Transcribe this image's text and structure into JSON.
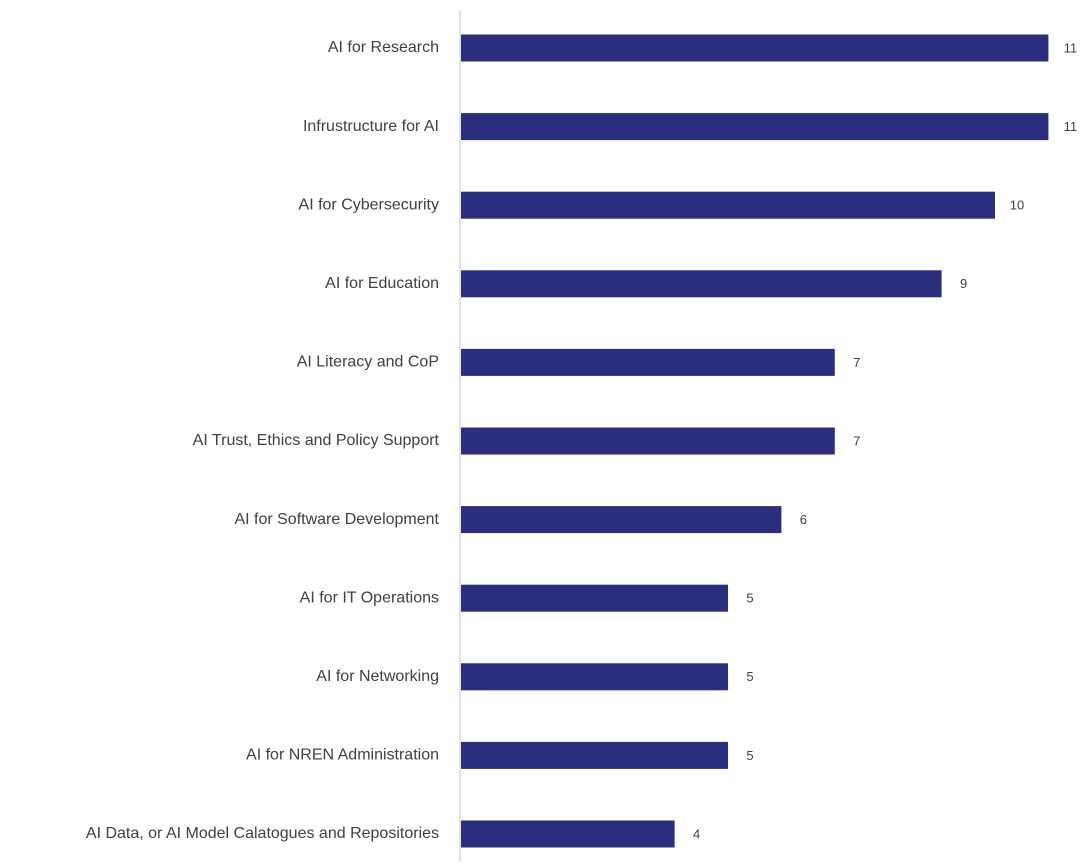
{
  "chart_data": {
    "type": "bar",
    "orientation": "horizontal",
    "title": "",
    "xlabel": "",
    "ylabel": "",
    "categories": [
      "AI for Research",
      "Infrustructure for AI",
      "AI for Cybersecurity",
      "AI for Education",
      "AI Literacy and CoP",
      "AI Trust, Ethics and Policy Support",
      "AI for Software Development",
      "AI for IT Operations",
      "AI for Networking",
      "AI for NREN Administration",
      "AI Data, or AI Model Calatogues and Repositories"
    ],
    "values": [
      11,
      11,
      10,
      9,
      7,
      7,
      6,
      5,
      5,
      5,
      4
    ],
    "xlim": [
      0,
      11
    ],
    "grid": false,
    "legend": "none",
    "data_labels": true,
    "colors": {
      "bar": "#2b2e7f",
      "axis": "#d9d9d9",
      "text": "#404040"
    }
  }
}
